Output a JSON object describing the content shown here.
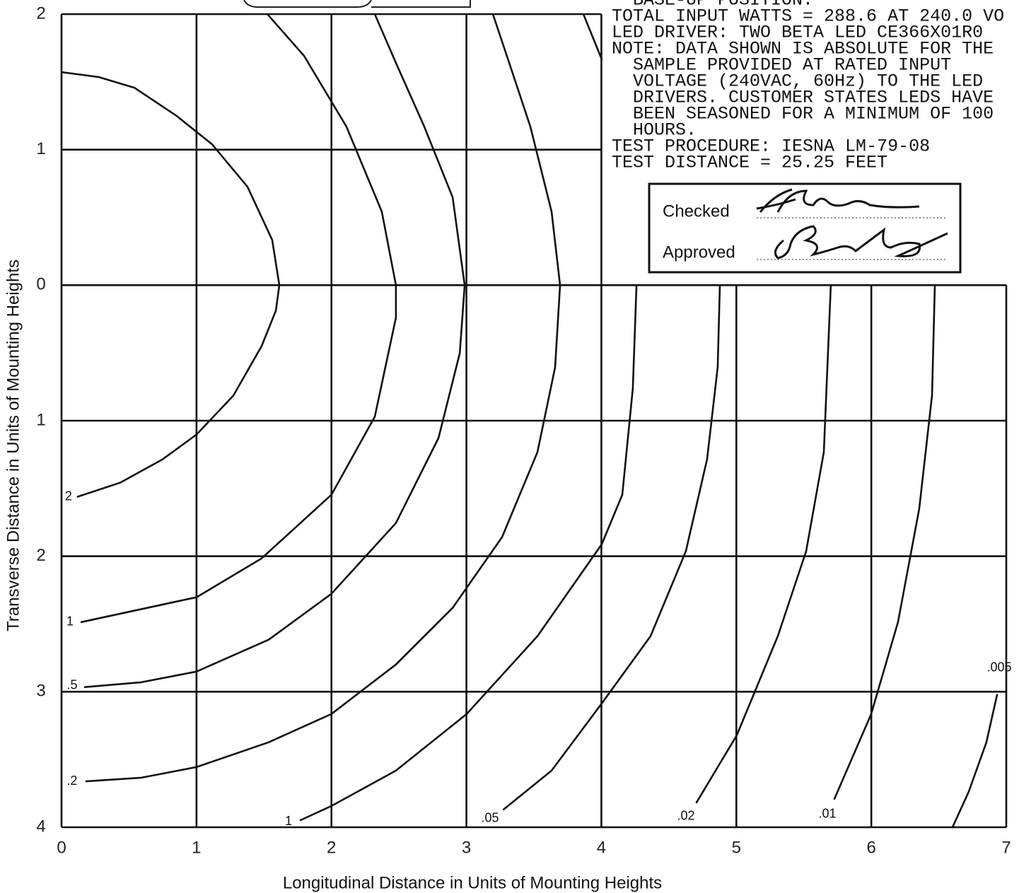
{
  "chart_data": {
    "type": "contour",
    "x_axis_label": "Longitudinal Distance in Units of Mounting Heights",
    "y_axis_label": "Transverse Distance in Units of Mounting Heights",
    "xlim": [
      0,
      7
    ],
    "ylim": [
      -2,
      4
    ],
    "y_axis_inverted": true,
    "xticks": [
      0,
      1,
      2,
      3,
      4,
      5,
      6,
      7
    ],
    "yticks": [
      {
        "value": -2,
        "label": "2"
      },
      {
        "value": -1,
        "label": "1"
      },
      0,
      1,
      2,
      3,
      4
    ],
    "grid": true,
    "color": "#111111",
    "series": [
      {
        "name": "2",
        "x": [
          0.12,
          0.435,
          0.749,
          1.0,
          1.273,
          1.483,
          1.588,
          1.614,
          1.561,
          1.378,
          1.116,
          0.854,
          0.54,
          0.278,
          0
        ],
        "values": [
          1.561,
          1.457,
          1.285,
          1.102,
          0.815,
          0.449,
          0.188,
          0,
          -0.334,
          -0.726,
          -1.039,
          -1.248,
          -1.457,
          -1.535,
          -1.572
        ]
      },
      {
        "name": "1",
        "x": [
          0.147,
          1.0,
          1.483,
          2.0,
          2.321,
          2.478,
          2.478,
          2.373,
          2.111,
          1.797,
          1.525
        ],
        "values": [
          2.486,
          2.303,
          2.016,
          1.546,
          0.971,
          0.24,
          0,
          -0.543,
          -1.17,
          -1.692,
          -2
        ]
      },
      {
        "name": ".5",
        "x": [
          0.173,
          0.592,
          1.0,
          1.535,
          2.0,
          2.478,
          2.793,
          2.951,
          2.987,
          2.898,
          2.688,
          2.478,
          2.321
        ],
        "values": [
          2.966,
          2.93,
          2.851,
          2.616,
          2.277,
          1.755,
          1.128,
          0.501,
          0,
          -0.648,
          -1.17,
          -1.64,
          -2
        ]
      },
      {
        "name": ".2",
        "x": [
          0.183,
          0.592,
          1.0,
          1.535,
          2.0,
          2.478,
          2.898,
          3.264,
          3.526,
          3.657,
          3.694,
          3.631,
          3.474,
          3.317,
          3.196
        ],
        "values": [
          3.661,
          3.634,
          3.556,
          3.373,
          3.164,
          2.799,
          2.381,
          1.859,
          1.232,
          0.606,
          0,
          -0.543,
          -1.17,
          -1.64,
          -2
        ]
      },
      {
        "name": "1",
        "x": [
          1.771,
          2.0,
          2.478,
          3.002,
          3.526,
          4.003,
          4.155,
          4.233,
          4.26,
          null,
          3.867,
          4.003
        ],
        "values": [
          3.948,
          3.843,
          3.582,
          3.164,
          2.59,
          1.911,
          1.546,
          0.762,
          0,
          null,
          -2,
          -1.666
        ]
      },
      {
        "name": ".05",
        "x": [
          3.275,
          3.631,
          4.003,
          4.364,
          4.626,
          4.783,
          4.862,
          4.878
        ],
        "values": [
          3.869,
          3.582,
          3.086,
          2.59,
          1.963,
          1.285,
          0.606,
          0
        ]
      },
      {
        "name": ".02",
        "x": [
          4.705,
          5.003,
          5.307,
          5.517,
          5.648,
          5.7
        ],
        "values": [
          3.817,
          3.321,
          2.59,
          1.963,
          1.232,
          0
        ]
      },
      {
        "name": ".01",
        "x": [
          5.727,
          5.999,
          6.198,
          6.355,
          6.45,
          6.471
        ],
        "values": [
          3.791,
          3.164,
          2.486,
          1.65,
          0.815,
          0
        ]
      },
      {
        "name": ".005",
        "x": [
          6.932,
          6.853,
          6.722,
          6.602
        ],
        "values": [
          3.023,
          3.373,
          3.738,
          4.0
        ]
      }
    ],
    "notes": [
      "BASE-UP POSITION.",
      "TOTAL INPUT WATTS = 288.6 AT 240.0 VO",
      "LED DRIVER: TWO BETA LED CE366X01R0",
      "NOTE: DATA SHOWN IS ABSOLUTE FOR THE",
      "SAMPLE PROVIDED AT RATED INPUT",
      "VOLTAGE (240VAC, 60Hz) TO THE LED",
      "DRIVERS. CUSTOMER STATES LEDS HAVE",
      "BEEN SEASONED FOR A MINIMUM OF 100",
      "HOURS.",
      "TEST PROCEDURE: IESNA LM-79-08",
      "TEST DISTANCE = 25.25 FEET"
    ],
    "signoff": {
      "checked": "Checked",
      "approved": "Approved"
    }
  }
}
